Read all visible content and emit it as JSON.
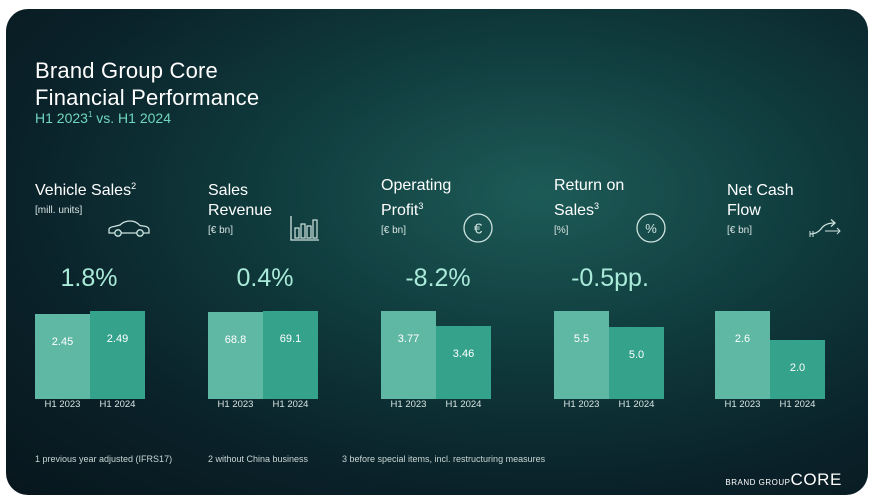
{
  "title": {
    "line1": "Brand Group Core",
    "line2": "Financial Performance"
  },
  "subtitle": {
    "part1": "H1 2023",
    "sup": "1",
    "part2": " vs. H1 2024"
  },
  "kpis": [
    {
      "title_l1": "Vehicle Sales",
      "title_sup": "2",
      "title_l2": "",
      "unit": "[mill. units]",
      "change": "1.8%",
      "icon": "car-icon"
    },
    {
      "title_l1": "Sales",
      "title_sup": "",
      "title_l2": "Revenue",
      "unit": "[€ bn]",
      "change": "0.4%",
      "icon": "bar-chart-icon"
    },
    {
      "title_l1": "Operating",
      "title_sup": "3",
      "title_l2": "Profit",
      "unit": "[€ bn]",
      "change": "-8.2%",
      "icon": "euro-circle-icon"
    },
    {
      "title_l1": "Return on",
      "title_sup": "3",
      "title_l2": "Sales",
      "unit": "[%]",
      "change": "-0.5pp.",
      "icon": "percent-circle-icon"
    },
    {
      "title_l1": "Net Cash",
      "title_sup": "",
      "title_l2": "Flow",
      "unit": "[€ bn]",
      "change": "",
      "icon": "cash-flow-arrow-icon"
    }
  ],
  "chart_data": [
    {
      "type": "bar",
      "title": "Vehicle Sales",
      "unit": "mill. units",
      "categories": [
        "H1 2023",
        "H1 2024"
      ],
      "values": [
        2.45,
        2.49
      ],
      "value_labels": [
        "2.45",
        "2.49"
      ],
      "change": "1.8%"
    },
    {
      "type": "bar",
      "title": "Sales Revenue",
      "unit": "€ bn",
      "categories": [
        "H1 2023",
        "H1 2024"
      ],
      "values": [
        68.8,
        69.1
      ],
      "value_labels": [
        "68.8",
        "69.1"
      ],
      "change": "0.4%"
    },
    {
      "type": "bar",
      "title": "Operating Profit",
      "unit": "€ bn",
      "categories": [
        "H1 2023",
        "H1 2024"
      ],
      "values": [
        3.77,
        3.46
      ],
      "value_labels": [
        "3.77",
        "3.46"
      ],
      "change": "-8.2%"
    },
    {
      "type": "bar",
      "title": "Return on Sales",
      "unit": "%",
      "categories": [
        "H1 2023",
        "H1 2024"
      ],
      "values": [
        5.5,
        5.0
      ],
      "value_labels": [
        "5.5",
        "5.0"
      ],
      "change": "-0.5pp."
    },
    {
      "type": "bar",
      "title": "Net Cash Flow",
      "unit": "€ bn",
      "categories": [
        "H1 2023",
        "H1 2024"
      ],
      "values": [
        2.6,
        2.0
      ],
      "value_labels": [
        "2.6",
        "2.0"
      ],
      "change": ""
    }
  ],
  "footnotes": [
    "1 previous year adjusted (IFRS17)",
    "2 without China business",
    "3 before special items, incl. restructuring measures"
  ],
  "brand": {
    "small": "BRAND GROUP",
    "big": "CORE"
  },
  "colors": {
    "bar_2023": "#5fb8a3",
    "bar_2024": "#35a38c",
    "accent": "#6fd6be"
  }
}
